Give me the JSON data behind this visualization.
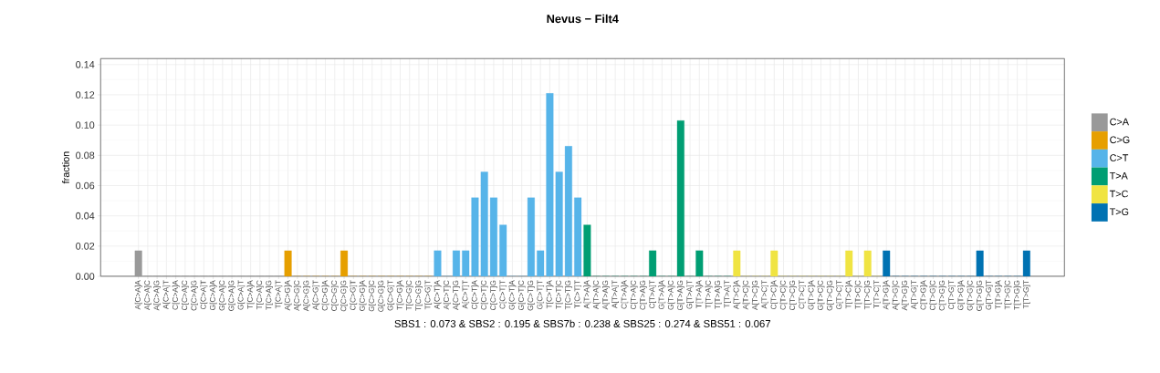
{
  "chart_data": {
    "type": "bar",
    "title": "Nevus − Filt4",
    "xlabel": "SBS1 : 0.073 & SBS2 : 0.195 & SBS7b : 0.238 & SBS25 : 0.274 & SBS51 : 0.067",
    "ylabel": "fraction",
    "categories": [
      "A[C>A]A",
      "A[C>A]C",
      "A[C>A]G",
      "A[C>A]T",
      "C[C>A]A",
      "C[C>A]C",
      "C[C>A]G",
      "C[C>A]T",
      "G[C>A]A",
      "G[C>A]C",
      "G[C>A]G",
      "G[C>A]T",
      "T[C>A]A",
      "T[C>A]C",
      "T[C>A]G",
      "T[C>A]T",
      "A[C>G]A",
      "A[C>G]C",
      "A[C>G]G",
      "A[C>G]T",
      "C[C>G]A",
      "C[C>G]C",
      "C[C>G]G",
      "C[C>G]T",
      "G[C>G]A",
      "G[C>G]C",
      "G[C>G]G",
      "G[C>G]T",
      "T[C>G]A",
      "T[C>G]C",
      "T[C>G]G",
      "T[C>G]T",
      "A[C>T]A",
      "A[C>T]C",
      "A[C>T]G",
      "A[C>T]T",
      "C[C>T]A",
      "C[C>T]C",
      "C[C>T]G",
      "C[C>T]T",
      "G[C>T]A",
      "G[C>T]C",
      "G[C>T]G",
      "G[C>T]T",
      "T[C>T]A",
      "T[C>T]C",
      "T[C>T]G",
      "T[C>T]T",
      "A[T>A]A",
      "A[T>A]C",
      "A[T>A]G",
      "A[T>A]T",
      "C[T>A]A",
      "C[T>A]C",
      "C[T>A]G",
      "C[T>A]T",
      "G[T>A]A",
      "G[T>A]C",
      "G[T>A]G",
      "G[T>A]T",
      "T[T>A]A",
      "T[T>A]C",
      "T[T>A]G",
      "T[T>A]T",
      "A[T>C]A",
      "A[T>C]C",
      "A[T>C]G",
      "A[T>C]T",
      "C[T>C]A",
      "C[T>C]C",
      "C[T>C]G",
      "C[T>C]T",
      "G[T>C]A",
      "G[T>C]C",
      "G[T>C]G",
      "G[T>C]T",
      "T[T>C]A",
      "T[T>C]C",
      "T[T>C]G",
      "T[T>C]T",
      "A[T>G]A",
      "A[T>G]C",
      "A[T>G]G",
      "A[T>G]T",
      "C[T>G]A",
      "C[T>G]C",
      "C[T>G]G",
      "C[T>G]T",
      "G[T>G]A",
      "G[T>G]C",
      "G[T>G]G",
      "G[T>G]T",
      "T[T>G]A",
      "T[T>G]C",
      "T[T>G]G",
      "T[T>G]T"
    ],
    "series": [
      {
        "name": "C>A",
        "color": "#999999",
        "values": [
          0.017,
          0,
          0,
          0,
          0,
          0,
          0,
          0,
          0,
          0,
          0,
          0,
          0,
          0,
          0,
          0,
          null,
          null,
          null,
          null,
          null,
          null,
          null,
          null,
          null,
          null,
          null,
          null,
          null,
          null,
          null,
          null,
          null,
          null,
          null,
          null,
          null,
          null,
          null,
          null,
          null,
          null,
          null,
          null,
          null,
          null,
          null,
          null,
          null,
          null,
          null,
          null,
          null,
          null,
          null,
          null,
          null,
          null,
          null,
          null,
          null,
          null,
          null,
          null,
          null,
          null,
          null,
          null,
          null,
          null,
          null,
          null,
          null,
          null,
          null,
          null,
          null,
          null,
          null,
          null,
          null,
          null,
          null,
          null,
          null,
          null,
          null,
          null,
          null,
          null,
          null,
          null,
          null,
          null,
          null,
          null
        ]
      },
      {
        "name": "C>G",
        "color": "#e69f00",
        "values": [
          null,
          null,
          null,
          null,
          null,
          null,
          null,
          null,
          null,
          null,
          null,
          null,
          null,
          null,
          null,
          null,
          0.017,
          0,
          0,
          0,
          0,
          0,
          0.017,
          0,
          0,
          0,
          0,
          0,
          0,
          0,
          0,
          0,
          null,
          null,
          null,
          null,
          null,
          null,
          null,
          null,
          null,
          null,
          null,
          null,
          null,
          null,
          null,
          null,
          null,
          null,
          null,
          null,
          null,
          null,
          null,
          null,
          null,
          null,
          null,
          null,
          null,
          null,
          null,
          null,
          null,
          null,
          null,
          null,
          null,
          null,
          null,
          null,
          null,
          null,
          null,
          null,
          null,
          null,
          null,
          null,
          null,
          null,
          null,
          null,
          null,
          null,
          null,
          null,
          null,
          null,
          null,
          null,
          null,
          null,
          null,
          null
        ]
      },
      {
        "name": "C>T",
        "color": "#56b4e9",
        "values": [
          null,
          null,
          null,
          null,
          null,
          null,
          null,
          null,
          null,
          null,
          null,
          null,
          null,
          null,
          null,
          null,
          null,
          null,
          null,
          null,
          null,
          null,
          null,
          null,
          null,
          null,
          null,
          null,
          null,
          null,
          null,
          null,
          0.017,
          0,
          0.017,
          0.017,
          0.052,
          0.069,
          0.052,
          0.034,
          0,
          0,
          0.052,
          0.017,
          0.121,
          0.069,
          0.086,
          0.052,
          null,
          null,
          null,
          null,
          null,
          null,
          null,
          null,
          null,
          null,
          null,
          null,
          null,
          null,
          null,
          null,
          null,
          null,
          null,
          null,
          null,
          null,
          null,
          null,
          null,
          null,
          null,
          null,
          null,
          null,
          null,
          null,
          null,
          null,
          null,
          null,
          null,
          null,
          null,
          null,
          null,
          null,
          null,
          null,
          null,
          null,
          null,
          null
        ]
      },
      {
        "name": "T>A",
        "color": "#009e73",
        "values": [
          null,
          null,
          null,
          null,
          null,
          null,
          null,
          null,
          null,
          null,
          null,
          null,
          null,
          null,
          null,
          null,
          null,
          null,
          null,
          null,
          null,
          null,
          null,
          null,
          null,
          null,
          null,
          null,
          null,
          null,
          null,
          null,
          null,
          null,
          null,
          null,
          null,
          null,
          null,
          null,
          null,
          null,
          null,
          null,
          null,
          null,
          null,
          null,
          0.034,
          0,
          0,
          0,
          0,
          0,
          0,
          0.017,
          0,
          0,
          0.103,
          0,
          0.017,
          0,
          0,
          0,
          null,
          null,
          null,
          null,
          null,
          null,
          null,
          null,
          null,
          null,
          null,
          null,
          null,
          null,
          null,
          null,
          null,
          null,
          null,
          null,
          null,
          null,
          null,
          null,
          null,
          null,
          null,
          null,
          null,
          null,
          null,
          null
        ]
      },
      {
        "name": "T>C",
        "color": "#f0e442",
        "values": [
          null,
          null,
          null,
          null,
          null,
          null,
          null,
          null,
          null,
          null,
          null,
          null,
          null,
          null,
          null,
          null,
          null,
          null,
          null,
          null,
          null,
          null,
          null,
          null,
          null,
          null,
          null,
          null,
          null,
          null,
          null,
          null,
          null,
          null,
          null,
          null,
          null,
          null,
          null,
          null,
          null,
          null,
          null,
          null,
          null,
          null,
          null,
          null,
          null,
          null,
          null,
          null,
          null,
          null,
          null,
          null,
          null,
          null,
          null,
          null,
          null,
          null,
          null,
          null,
          0.017,
          0,
          0,
          0,
          0.017,
          0,
          0,
          0,
          0,
          0,
          0,
          0,
          0.017,
          0,
          0.017,
          0,
          null,
          null,
          null,
          null,
          null,
          null,
          null,
          null,
          null,
          null,
          null,
          null,
          null,
          null,
          null,
          null
        ]
      },
      {
        "name": "T>G",
        "color": "#0072b2",
        "values": [
          null,
          null,
          null,
          null,
          null,
          null,
          null,
          null,
          null,
          null,
          null,
          null,
          null,
          null,
          null,
          null,
          null,
          null,
          null,
          null,
          null,
          null,
          null,
          null,
          null,
          null,
          null,
          null,
          null,
          null,
          null,
          null,
          null,
          null,
          null,
          null,
          null,
          null,
          null,
          null,
          null,
          null,
          null,
          null,
          null,
          null,
          null,
          null,
          null,
          null,
          null,
          null,
          null,
          null,
          null,
          null,
          null,
          null,
          null,
          null,
          null,
          null,
          null,
          null,
          null,
          null,
          null,
          null,
          null,
          null,
          null,
          null,
          null,
          null,
          null,
          null,
          null,
          null,
          null,
          null,
          0.017,
          0,
          0,
          0,
          0,
          0,
          0,
          0,
          0,
          0,
          0.017,
          0,
          0,
          0,
          0,
          0.017
        ]
      }
    ],
    "ylim": [
      0,
      0.144
    ],
    "yticks": [
      {
        "value": 0,
        "label": "0.00"
      },
      {
        "value": 0.02,
        "label": "0.02"
      },
      {
        "value": 0.04,
        "label": "0.04"
      },
      {
        "value": 0.06,
        "label": "0.06"
      },
      {
        "value": 0.08,
        "label": "0.08"
      },
      {
        "value": 0.1,
        "label": "0.10"
      },
      {
        "value": 0.12,
        "label": "0.12"
      },
      {
        "value": 0.14,
        "label": "0.14"
      }
    ],
    "grid": true,
    "legend": "right"
  }
}
